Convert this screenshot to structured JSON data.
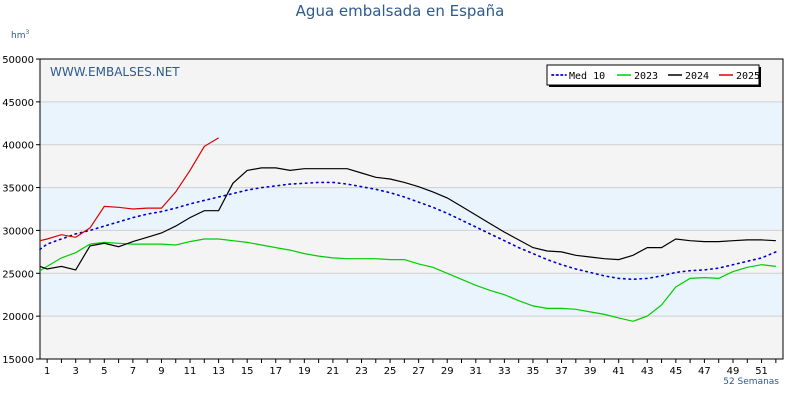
{
  "chart_data": {
    "type": "line",
    "title": "Agua embalsada en España",
    "ylabel_unit": "hm",
    "ylabel_unit_sup": "3",
    "xlabel": "52 Semanas",
    "watermark": "WWW.EMBALSES.NET",
    "ylim": [
      15000,
      50000
    ],
    "xlim": [
      0.5,
      52.5
    ],
    "y_ticks": [
      15000,
      20000,
      25000,
      30000,
      35000,
      40000,
      45000,
      50000
    ],
    "x_ticks": [
      1,
      3,
      5,
      7,
      9,
      11,
      13,
      15,
      17,
      19,
      21,
      23,
      25,
      27,
      29,
      31,
      33,
      35,
      37,
      39,
      41,
      43,
      45,
      47,
      49,
      51
    ],
    "band_colors": [
      "#f4f4f4",
      "#eaf4fc"
    ],
    "legend_position": "top-right",
    "series": [
      {
        "name": "Med 10",
        "color": "#0000cc",
        "dash": "dotted",
        "x": [
          0.5,
          1,
          2,
          3,
          4,
          5,
          6,
          7,
          8,
          9,
          10,
          11,
          12,
          13,
          14,
          15,
          16,
          17,
          18,
          19,
          20,
          21,
          22,
          23,
          24,
          25,
          26,
          27,
          28,
          29,
          30,
          31,
          32,
          33,
          34,
          35,
          36,
          37,
          38,
          39,
          40,
          41,
          42,
          43,
          44,
          45,
          46,
          47,
          48,
          49,
          50,
          51,
          52
        ],
        "values": [
          27800,
          28400,
          29000,
          29600,
          30000,
          30500,
          31000,
          31500,
          31900,
          32200,
          32600,
          33100,
          33500,
          33900,
          34300,
          34700,
          35000,
          35200,
          35400,
          35500,
          35600,
          35600,
          35400,
          35100,
          34800,
          34400,
          33900,
          33300,
          32700,
          32000,
          31200,
          30400,
          29600,
          28800,
          28000,
          27300,
          26600,
          26000,
          25500,
          25100,
          24700,
          24400,
          24300,
          24400,
          24700,
          25100,
          25300,
          25400,
          25600,
          26000,
          26400,
          26800,
          27500
        ]
      },
      {
        "name": "2023",
        "color": "#00cc00",
        "dash": "solid",
        "x": [
          0.5,
          1,
          2,
          3,
          4,
          5,
          6,
          7,
          8,
          9,
          10,
          11,
          12,
          13,
          14,
          15,
          16,
          17,
          18,
          19,
          20,
          21,
          22,
          23,
          24,
          25,
          26,
          27,
          28,
          29,
          30,
          31,
          32,
          33,
          34,
          35,
          36,
          37,
          38,
          39,
          40,
          41,
          42,
          43,
          44,
          45,
          46,
          47,
          48,
          49,
          50,
          51,
          52
        ],
        "values": [
          25300,
          25800,
          26800,
          27400,
          28400,
          28600,
          28500,
          28400,
          28400,
          28400,
          28300,
          28700,
          29000,
          29000,
          28800,
          28600,
          28300,
          28000,
          27700,
          27300,
          27000,
          26800,
          26700,
          26700,
          26700,
          26600,
          26600,
          26100,
          25700,
          25000,
          24300,
          23600,
          23000,
          22500,
          21800,
          21200,
          20900,
          20900,
          20800,
          20500,
          20200,
          19800,
          19400,
          20000,
          21300,
          23400,
          24400,
          24500,
          24400,
          25200,
          25700,
          26000,
          25800
        ]
      },
      {
        "name": "2024",
        "color": "#000000",
        "dash": "solid",
        "x": [
          0.5,
          1,
          2,
          3,
          4,
          5,
          6,
          7,
          8,
          9,
          10,
          11,
          12,
          13,
          14,
          15,
          16,
          17,
          18,
          19,
          20,
          21,
          22,
          23,
          24,
          25,
          26,
          27,
          28,
          29,
          30,
          31,
          32,
          33,
          34,
          35,
          36,
          37,
          38,
          39,
          40,
          41,
          42,
          43,
          44,
          45,
          46,
          47,
          48,
          49,
          50,
          51,
          52
        ],
        "values": [
          25800,
          25500,
          25800,
          25400,
          28200,
          28500,
          28100,
          28700,
          29200,
          29700,
          30500,
          31500,
          32300,
          32300,
          35500,
          37000,
          37300,
          37300,
          37000,
          37200,
          37200,
          37200,
          37200,
          36700,
          36200,
          36000,
          35600,
          35100,
          34500,
          33800,
          32800,
          31800,
          30800,
          29800,
          28900,
          28000,
          27600,
          27500,
          27100,
          26900,
          26700,
          26600,
          27100,
          28000,
          28000,
          29000,
          28800,
          28700,
          28700,
          28800,
          28900,
          28900,
          28800
        ]
      },
      {
        "name": "2025",
        "color": "#dd0000",
        "dash": "solid",
        "x": [
          0.5,
          1,
          2,
          3,
          4,
          5,
          6,
          7,
          8,
          9,
          10,
          11,
          12,
          13
        ],
        "values": [
          28800,
          29000,
          29500,
          29200,
          30300,
          32800,
          32700,
          32500,
          32600,
          32600,
          34500,
          37000,
          39800,
          40800
        ]
      }
    ]
  }
}
